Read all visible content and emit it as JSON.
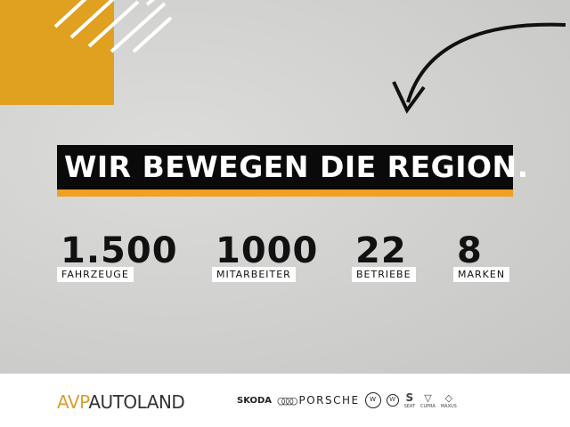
{
  "headline": "WIR BEWEGEN DIE REGION.",
  "stats": [
    {
      "value": "1.500",
      "label": "FAHRZEUGE"
    },
    {
      "value": "1000",
      "label": "MITARBEITER"
    },
    {
      "value": "22",
      "label": "BETRIEBE"
    },
    {
      "value": "8",
      "label": "MARKEN"
    }
  ],
  "footer": {
    "logo_part1": "AVP",
    "logo_part2": "AUTOLAND",
    "brands": [
      "SKODA",
      "PORSCHE",
      "SEAT",
      "CUPRA",
      "MAXUS"
    ]
  },
  "colors": {
    "accent": "#f0a023",
    "banner": "#0a0a0a"
  }
}
